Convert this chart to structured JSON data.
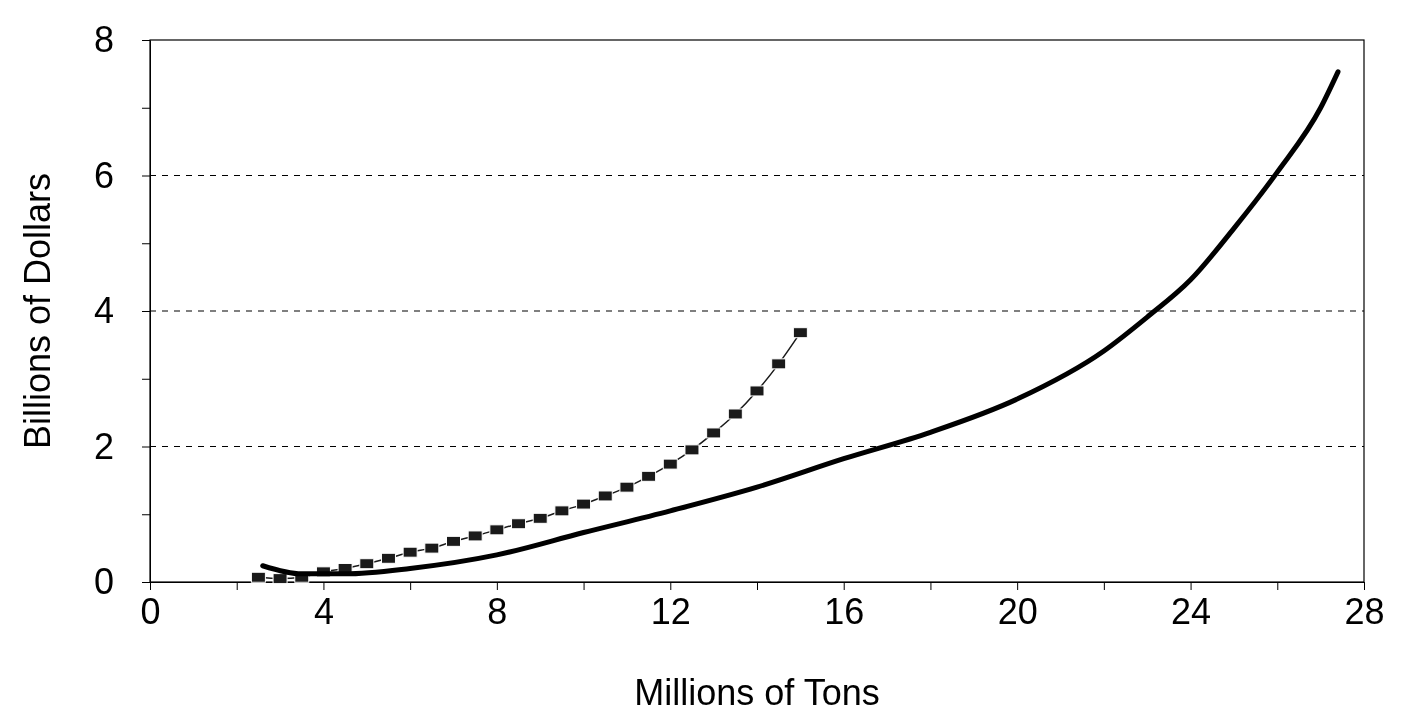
{
  "chart_data": {
    "type": "line",
    "xlabel": "Millions of Tons",
    "ylabel": "Billions of Dollars",
    "xlim": [
      0,
      28
    ],
    "xticks": [
      0,
      {
        "value": 2,
        "label": null
      },
      4,
      {
        "value": 6,
        "label": null
      },
      8,
      {
        "value": 10,
        "label": null
      },
      12,
      {
        "value": 14,
        "label": null
      },
      16,
      {
        "value": 18,
        "label": null
      },
      20,
      {
        "value": 22,
        "label": null
      },
      24,
      {
        "value": 26,
        "label": null
      },
      28
    ],
    "ylim": [
      0,
      8
    ],
    "yticks": [
      0,
      {
        "value": 1,
        "label": null
      },
      2,
      {
        "value": 3,
        "label": null
      },
      4,
      {
        "value": 5,
        "label": null
      },
      6,
      {
        "value": 7,
        "label": null
      },
      8
    ],
    "grid": "y",
    "series": [
      {
        "color": "#1a1a1a",
        "marker": "square",
        "x": [
          2.5,
          3,
          3.5,
          4,
          4.5,
          5,
          5.5,
          6,
          6.5,
          7,
          7.5,
          8,
          8.5,
          9,
          9.5,
          10,
          10.5,
          11,
          11.5,
          12,
          12.5,
          13,
          13.5,
          14,
          14.5,
          15
        ],
        "values": [
          0.07,
          0.05,
          0.07,
          0.15,
          0.2,
          0.27,
          0.35,
          0.44,
          0.5,
          0.6,
          0.68,
          0.77,
          0.86,
          0.94,
          1.05,
          1.15,
          1.27,
          1.4,
          1.56,
          1.74,
          1.95,
          2.2,
          2.48,
          2.82,
          3.22,
          3.68
        ]
      },
      {
        "color": "#000000",
        "marker": "none",
        "x": [
          2.6,
          3.5,
          4.5,
          6,
          8,
          10,
          12,
          14,
          16,
          18,
          20,
          22,
          23,
          24,
          25,
          26,
          27,
          27.4
        ],
        "values": [
          0.24,
          0.12,
          0.12,
          0.2,
          0.4,
          0.73,
          1.05,
          1.4,
          1.82,
          2.21,
          2.7,
          3.41,
          3.91,
          4.46,
          5.22,
          6.05,
          7.0,
          7.53
        ]
      }
    ]
  }
}
